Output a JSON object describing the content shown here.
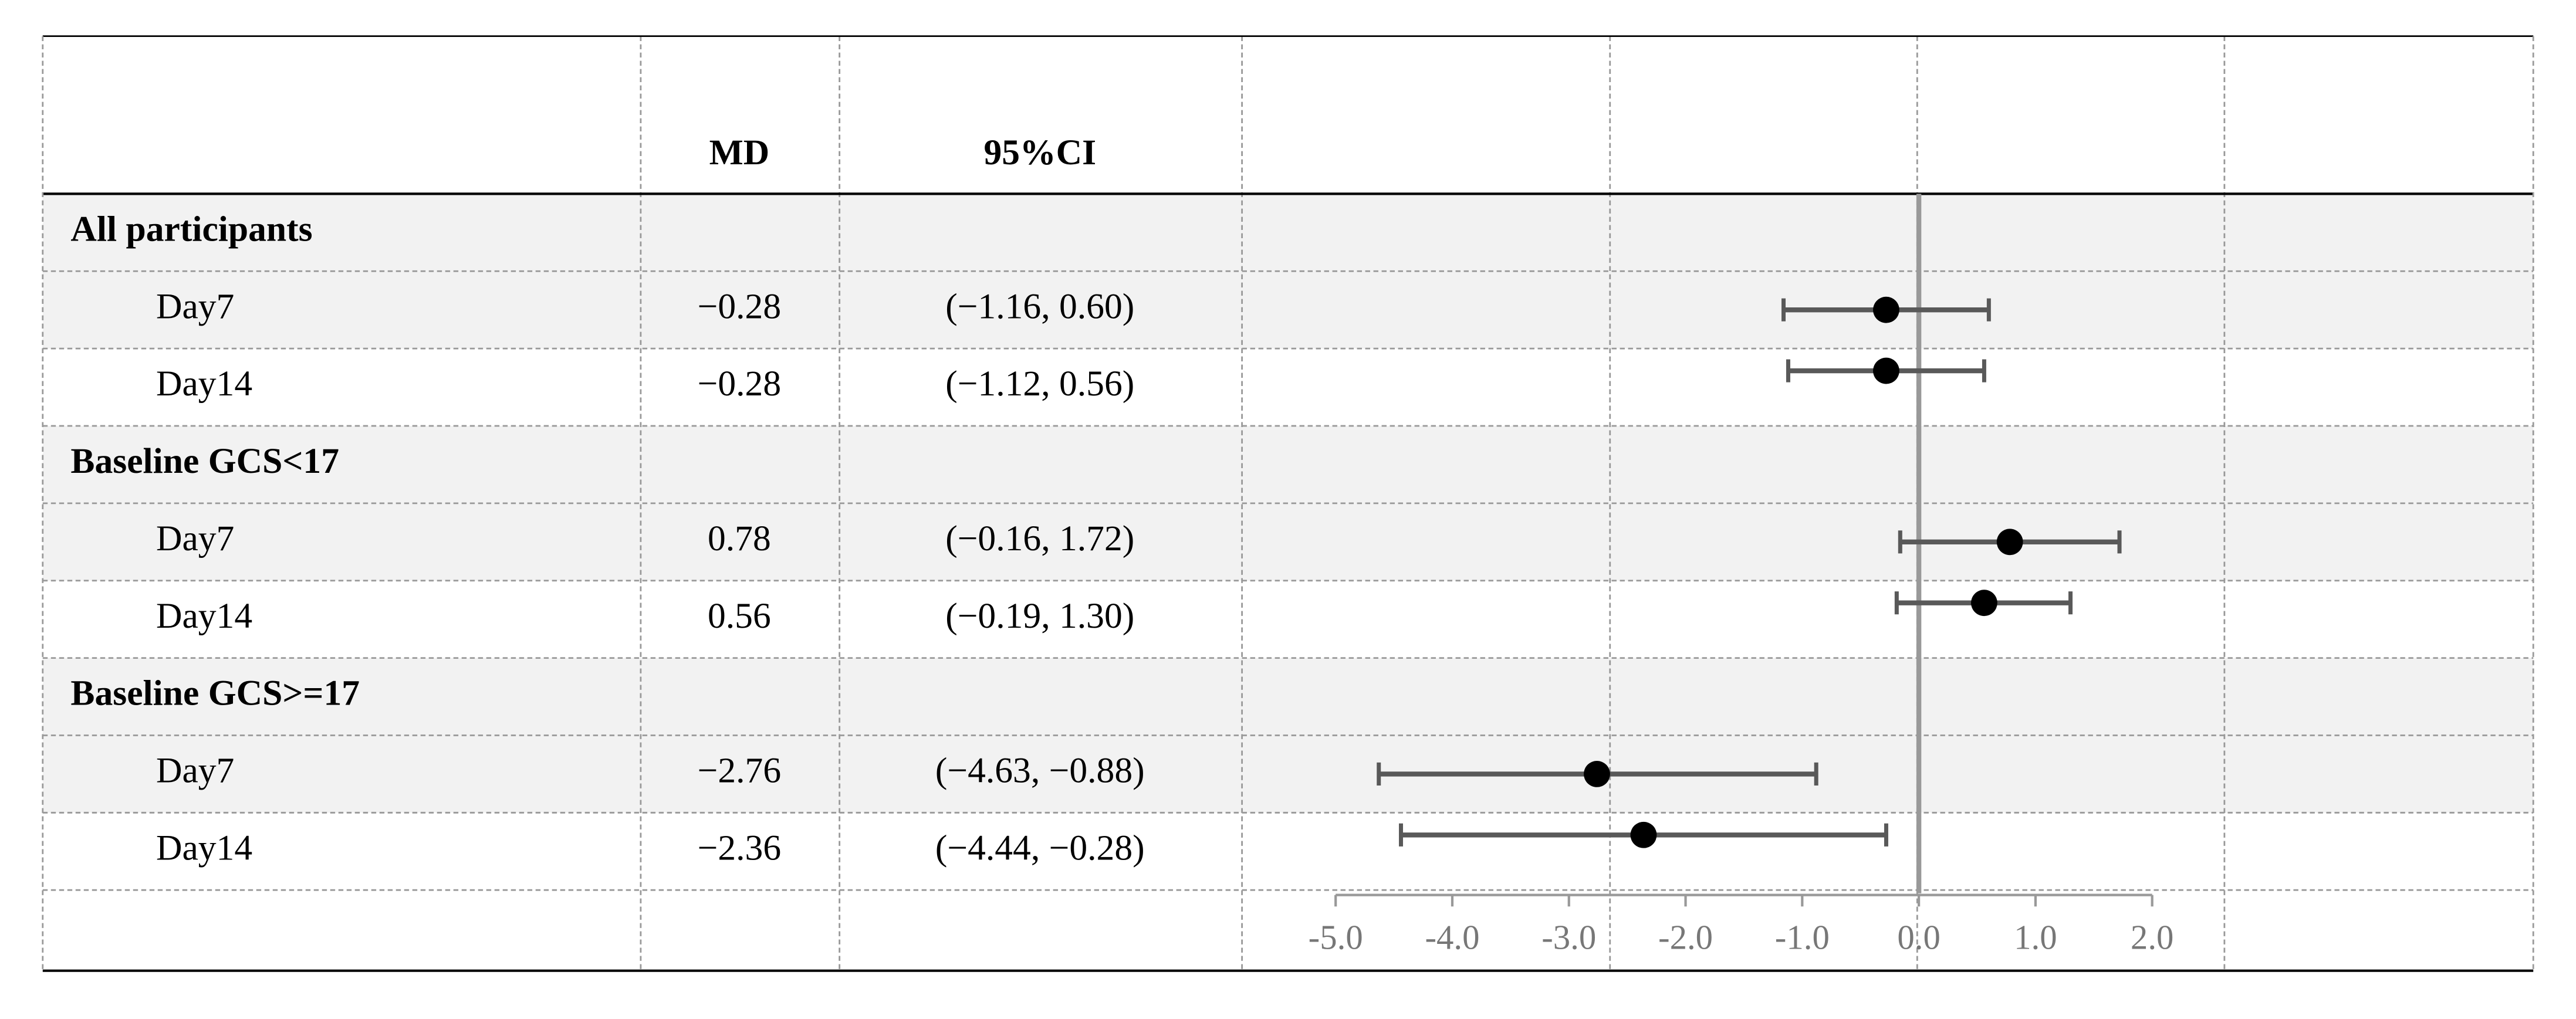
{
  "chart_data": {
    "type": "forest",
    "headers": {
      "md": "MD",
      "ci": "95%CI"
    },
    "groups": [
      {
        "name": "All participants",
        "rows": [
          {
            "label": "Day7",
            "md": -0.28,
            "md_label": "−0.28",
            "lower": -1.16,
            "upper": 0.6,
            "ci_label": "(−1.16, 0.60)"
          },
          {
            "label": "Day14",
            "md": -0.28,
            "md_label": "−0.28",
            "lower": -1.12,
            "upper": 0.56,
            "ci_label": "(−1.12, 0.56)"
          }
        ]
      },
      {
        "name": "Baseline GCS<17",
        "rows": [
          {
            "label": "Day7",
            "md": 0.78,
            "md_label": "0.78",
            "lower": -0.16,
            "upper": 1.72,
            "ci_label": "(−0.16, 1.72)"
          },
          {
            "label": "Day14",
            "md": 0.56,
            "md_label": "0.56",
            "lower": -0.19,
            "upper": 1.3,
            "ci_label": "(−0.19, 1.30)"
          }
        ]
      },
      {
        "name": "Baseline GCS>=17",
        "rows": [
          {
            "label": "Day7",
            "md": -2.76,
            "md_label": "−2.76",
            "lower": -4.63,
            "upper": -0.88,
            "ci_label": "(−4.63, −0.88)"
          },
          {
            "label": "Day14",
            "md": -2.36,
            "md_label": "−2.36",
            "lower": -4.44,
            "upper": -0.28,
            "ci_label": "(−4.44, −0.28)"
          }
        ]
      }
    ],
    "xlim": [
      -5,
      2
    ],
    "xticks": [
      {
        "value": -5,
        "label": "-5.0"
      },
      {
        "value": -4,
        "label": "-4.0"
      },
      {
        "value": -3,
        "label": "-3.0"
      },
      {
        "value": -2,
        "label": "-2.0"
      },
      {
        "value": -1,
        "label": "-1.0"
      },
      {
        "value": 0,
        "label": "0.0"
      },
      {
        "value": 1,
        "label": "1.0"
      },
      {
        "value": 2,
        "label": "2.0"
      }
    ],
    "point_color": "#000000",
    "bar_color": "#595959",
    "shade_color": "#f2f2f2"
  }
}
